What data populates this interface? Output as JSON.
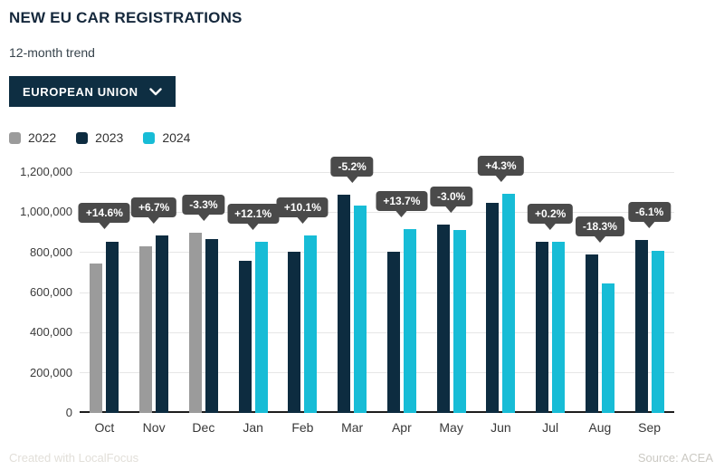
{
  "header": {
    "title": "NEW EU CAR REGISTRATIONS",
    "subtitle": "12-month trend"
  },
  "filter": {
    "label": "EUROPEAN UNION"
  },
  "legend": [
    {
      "label": "2022",
      "color": "#9b9b9b"
    },
    {
      "label": "2023",
      "color": "#0d2c40"
    },
    {
      "label": "2024",
      "color": "#17bcd6"
    }
  ],
  "colors": {
    "accent_navy": "#0e2e42",
    "accent_cyan": "#17bcd6",
    "bar_gray": "#9b9b9b",
    "tooltip_bg": "#4a4a4a",
    "gridline": "#e6e6e6",
    "axis_line": "#1d1d1d"
  },
  "chart_data": {
    "type": "bar",
    "title": "NEW EU CAR REGISTRATIONS",
    "subtitle": "12-month trend",
    "categories": [
      "Oct",
      "Nov",
      "Dec",
      "Jan",
      "Feb",
      "Mar",
      "Apr",
      "May",
      "Jun",
      "Jul",
      "Aug",
      "Sep"
    ],
    "series": [
      {
        "name": "2022",
        "color": "#9b9b9b",
        "values": [
          746000,
          830000,
          897000,
          null,
          null,
          null,
          null,
          null,
          null,
          null,
          null,
          null
        ]
      },
      {
        "name": "2023",
        "color": "#0d2c40",
        "values": [
          855000,
          886000,
          867000,
          760000,
          803000,
          1088000,
          803000,
          939000,
          1045000,
          851000,
          788000,
          861000
        ]
      },
      {
        "name": "2024",
        "color": "#17bcd6",
        "values": [
          null,
          null,
          null,
          852000,
          884000,
          1032000,
          914000,
          912000,
          1090000,
          852000,
          644000,
          809000
        ]
      }
    ],
    "annotations": [
      "+14.6%",
      "+6.7%",
      "-3.3%",
      "+12.1%",
      "+10.1%",
      "-5.2%",
      "+13.7%",
      "-3.0%",
      "+4.3%",
      "+0.2%",
      "-18.3%",
      "-6.1%"
    ],
    "xlabel": "",
    "ylabel": "",
    "ylim": [
      0,
      1200000
    ],
    "yticks": [
      "0",
      "200,000",
      "400,000",
      "600,000",
      "800,000",
      "1,000,000",
      "1,200,000"
    ],
    "grid": true,
    "legend_position": "top-left"
  },
  "footer": {
    "left": "Created with LocalFocus",
    "right": "Source: ACEA"
  }
}
